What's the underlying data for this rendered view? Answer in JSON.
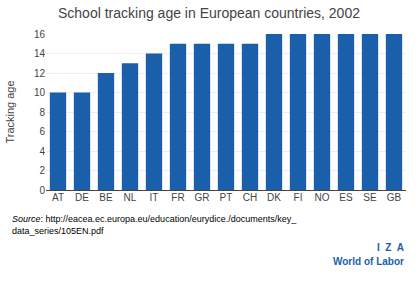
{
  "chart_data": {
    "type": "bar",
    "title": "School tracking age in European countries, 2002",
    "ylabel": "Tracking age",
    "categories": [
      "AT",
      "DE",
      "BE",
      "NL",
      "IT",
      "FR",
      "GR",
      "PT",
      "CH",
      "DK",
      "FI",
      "NO",
      "ES",
      "SE",
      "GB"
    ],
    "values": [
      10,
      10,
      12,
      13,
      14,
      15,
      15,
      15,
      15,
      16,
      16,
      16,
      16,
      16,
      16
    ],
    "color": "#1b5faa",
    "ylim": [
      0,
      16
    ],
    "yticks": [
      0,
      2,
      4,
      6,
      8,
      10,
      12,
      14,
      16
    ],
    "grid": true,
    "annotations": [
      "Source: http://eacea.ec.europa.eu/education/eurydice./documents/key_\ndata_series/105EN.pdf",
      "I  Z  A",
      "World of Labor"
    ]
  }
}
